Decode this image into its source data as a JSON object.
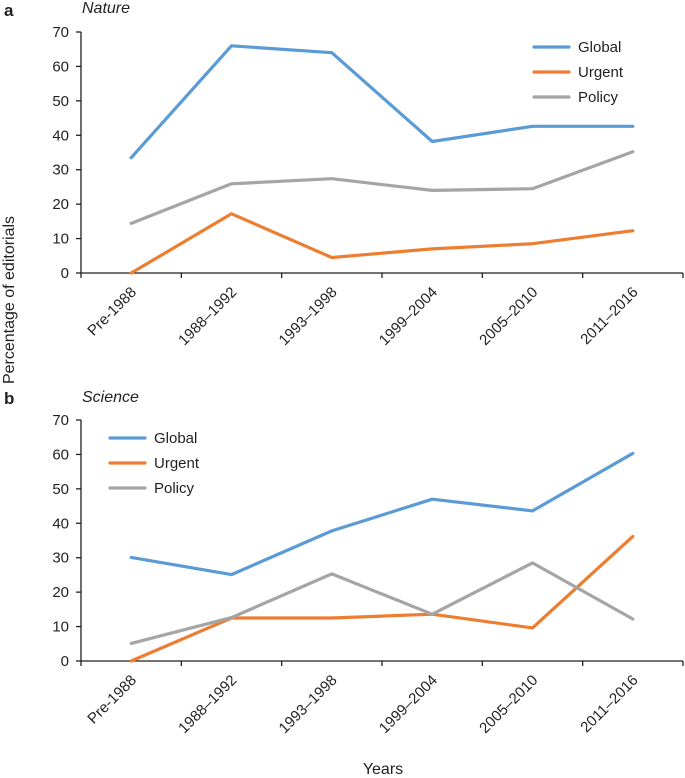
{
  "ylabel": "Percentage of editorials",
  "xlabel": "Years",
  "chart_data": [
    {
      "type": "line",
      "panel": "a",
      "title": "Nature",
      "categories": [
        "Pre-1988",
        "1988–1992",
        "1993–1998",
        "1999–2004",
        "2005–2010",
        "2011–2016"
      ],
      "ylim": [
        0,
        70
      ],
      "yticks": [
        0,
        10,
        20,
        30,
        40,
        50,
        60,
        70
      ],
      "legend_position": "top-right",
      "series": [
        {
          "name": "Global",
          "color": "#5b9bd5",
          "values": [
            33.5,
            66,
            64,
            38.2,
            42.6,
            42.6
          ]
        },
        {
          "name": "Urgent",
          "color": "#ed7d31",
          "values": [
            0,
            17.2,
            4.5,
            7,
            8.5,
            12.3
          ]
        },
        {
          "name": "Policy",
          "color": "#a5a5a5",
          "values": [
            14.4,
            25.9,
            27.4,
            24,
            24.5,
            35.2
          ]
        }
      ]
    },
    {
      "type": "line",
      "panel": "b",
      "title": "Science",
      "categories": [
        "Pre-1988",
        "1988–1992",
        "1993–1998",
        "1999–2004",
        "2005–2010",
        "2011–2016"
      ],
      "ylim": [
        0,
        70
      ],
      "yticks": [
        0,
        10,
        20,
        30,
        40,
        50,
        60,
        70
      ],
      "legend_position": "top-left",
      "series": [
        {
          "name": "Global",
          "color": "#5b9bd5",
          "values": [
            30.1,
            25.1,
            37.8,
            47,
            43.6,
            60.3
          ]
        },
        {
          "name": "Urgent",
          "color": "#ed7d31",
          "values": [
            0,
            12.5,
            12.5,
            13.6,
            9.6,
            36.2
          ]
        },
        {
          "name": "Policy",
          "color": "#a5a5a5",
          "values": [
            5.1,
            12.6,
            25.3,
            13.6,
            28.5,
            12.2
          ]
        }
      ]
    }
  ]
}
